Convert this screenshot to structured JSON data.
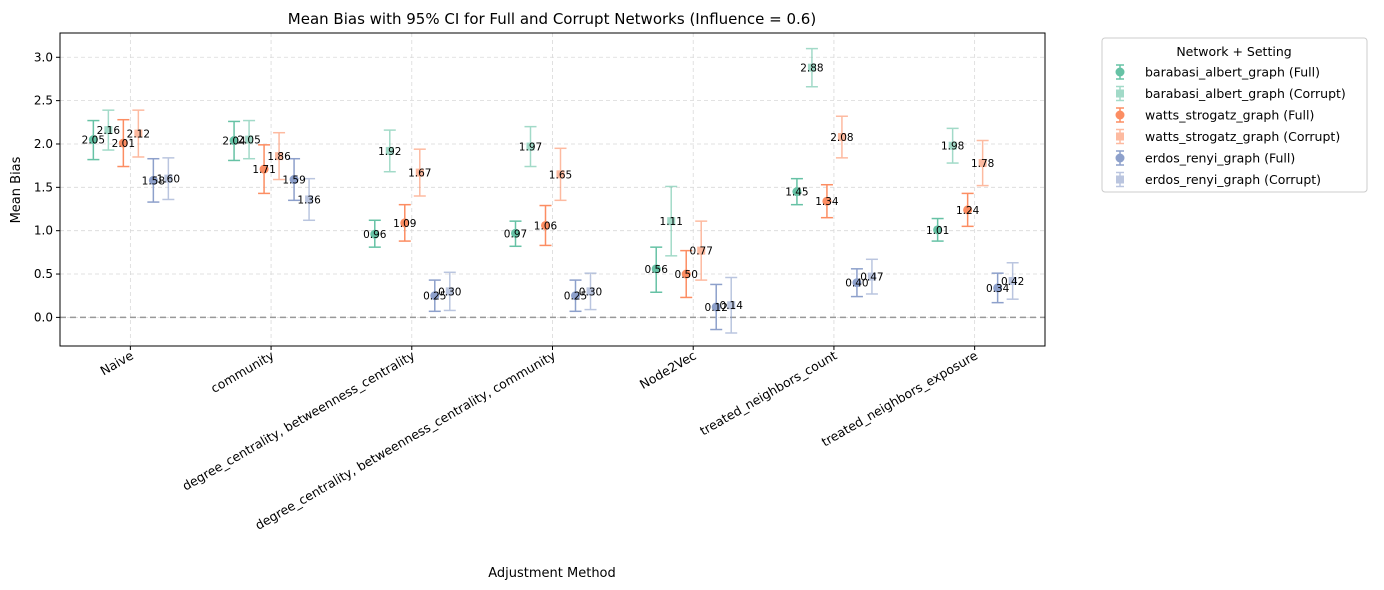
{
  "chart_data": {
    "type": "errorbar",
    "title": "Mean Bias with 95% CI for Full and Corrupt Networks (Influence = 0.6)",
    "xlabel": "Adjustment Method",
    "ylabel": "Mean Bias",
    "categories": [
      "Naive",
      "community",
      "degree_centrality, betweenness_centrality",
      "degree_centrality, betweenness_centrality, community",
      "Node2Vec",
      "treated_neighbors_count",
      "treated_neighbors_exposure"
    ],
    "ylim": [
      -0.33,
      3.28
    ],
    "yticks": [
      "0.0",
      "0.5",
      "1.0",
      "1.5",
      "2.0",
      "2.5",
      "3.0"
    ],
    "grid": true,
    "reference_line": 0,
    "legend": {
      "title": "Network + Setting",
      "placement": "outside right"
    },
    "series": [
      {
        "name": "barabasi_albert_graph (Full)",
        "color": "#66c2a5",
        "alpha": 1.0,
        "marker": "circle",
        "values": [
          2.05,
          2.04,
          0.96,
          0.97,
          0.56,
          1.45,
          1.01
        ],
        "ci_low": [
          1.82,
          1.81,
          0.81,
          0.82,
          0.29,
          1.3,
          0.88
        ],
        "ci_high": [
          2.27,
          2.26,
          1.12,
          1.11,
          0.81,
          1.6,
          1.14
        ]
      },
      {
        "name": "barabasi_albert_graph (Corrupt)",
        "color": "#66c2a5",
        "alpha": 0.6,
        "marker": "square",
        "values": [
          2.16,
          2.05,
          1.92,
          1.97,
          1.11,
          2.88,
          1.98
        ],
        "ci_low": [
          1.93,
          1.83,
          1.68,
          1.74,
          0.71,
          2.66,
          1.78
        ],
        "ci_high": [
          2.39,
          2.27,
          2.16,
          2.2,
          1.51,
          3.1,
          2.18
        ]
      },
      {
        "name": "watts_strogatz_graph (Full)",
        "color": "#fc8d62",
        "alpha": 1.0,
        "marker": "circle",
        "values": [
          2.01,
          1.71,
          1.09,
          1.06,
          0.5,
          1.34,
          1.24
        ],
        "ci_low": [
          1.74,
          1.43,
          0.88,
          0.83,
          0.23,
          1.15,
          1.05
        ],
        "ci_high": [
          2.28,
          1.99,
          1.3,
          1.29,
          0.77,
          1.53,
          1.43
        ]
      },
      {
        "name": "watts_strogatz_graph (Corrupt)",
        "color": "#fc8d62",
        "alpha": 0.6,
        "marker": "square",
        "values": [
          2.12,
          1.86,
          1.67,
          1.65,
          0.77,
          2.08,
          1.78
        ],
        "ci_low": [
          1.85,
          1.59,
          1.4,
          1.35,
          0.43,
          1.84,
          1.52
        ],
        "ci_high": [
          2.39,
          2.13,
          1.94,
          1.95,
          1.11,
          2.32,
          2.04
        ]
      },
      {
        "name": "erdos_renyi_graph (Full)",
        "color": "#8da0cb",
        "alpha": 1.0,
        "marker": "circle",
        "values": [
          1.58,
          1.59,
          0.25,
          0.25,
          0.12,
          0.4,
          0.34
        ],
        "ci_low": [
          1.33,
          1.35,
          0.07,
          0.07,
          -0.14,
          0.24,
          0.17
        ],
        "ci_high": [
          1.83,
          1.83,
          0.43,
          0.43,
          0.38,
          0.56,
          0.51
        ]
      },
      {
        "name": "erdos_renyi_graph (Corrupt)",
        "color": "#8da0cb",
        "alpha": 0.6,
        "marker": "square",
        "values": [
          1.6,
          1.36,
          0.3,
          0.3,
          0.14,
          0.47,
          0.42
        ],
        "ci_low": [
          1.36,
          1.12,
          0.08,
          0.09,
          -0.18,
          0.27,
          0.21
        ],
        "ci_high": [
          1.84,
          1.6,
          0.52,
          0.51,
          0.46,
          0.67,
          0.63
        ]
      }
    ]
  }
}
